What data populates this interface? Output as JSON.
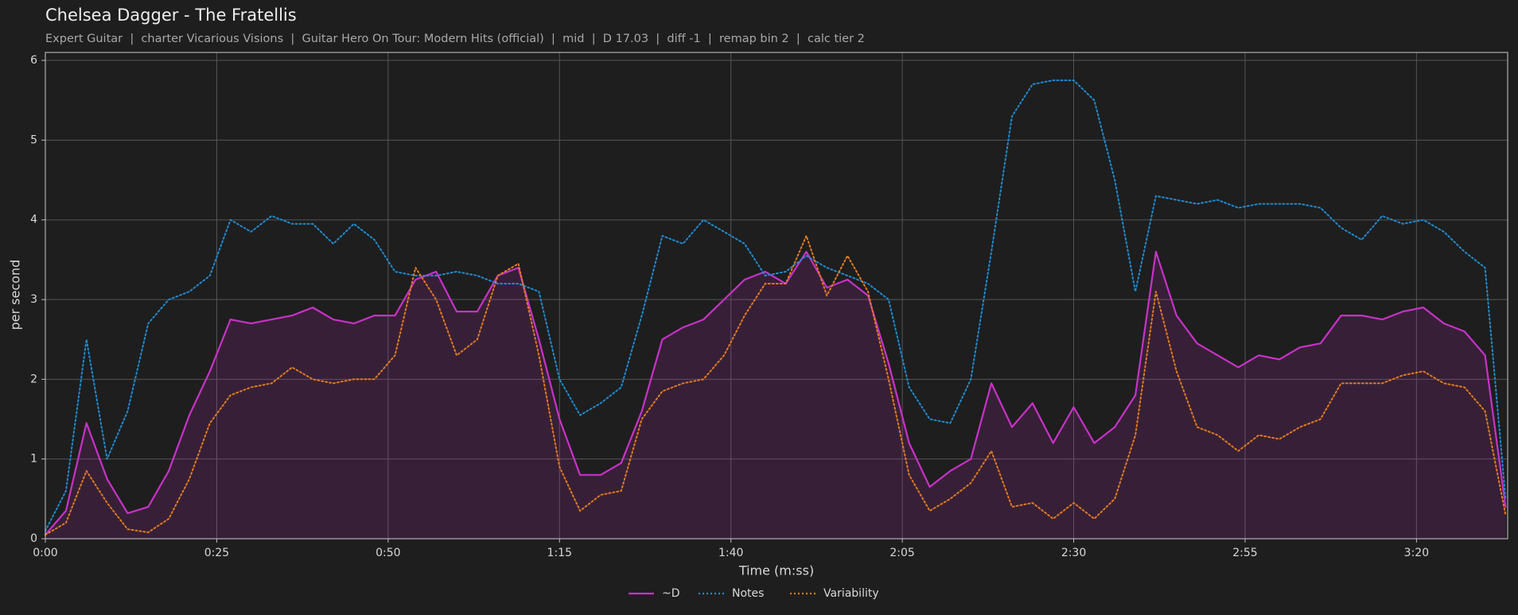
{
  "chart_data": {
    "type": "line",
    "title": "Chelsea Dagger - The Fratellis",
    "subtitle": "Expert Guitar  |  charter Vicarious Visions  |  Guitar Hero On Tour: Modern Hits (official)  |  mid  |  D 17.03  |  diff -1  |  remap bin 2  |  calc tier 2",
    "x_label": "Time (m:ss)",
    "y_label": "per second",
    "xlim": [
      0,
      213.3
    ],
    "ylim": [
      0,
      6.1
    ],
    "xticks": [
      {
        "value": 0,
        "label": "0:00"
      },
      {
        "value": 25,
        "label": "0:25"
      },
      {
        "value": 50,
        "label": "0:50"
      },
      {
        "value": 75,
        "label": "1:15"
      },
      {
        "value": 100,
        "label": "1:40"
      },
      {
        "value": 125,
        "label": "2:05"
      },
      {
        "value": 150,
        "label": "2:30"
      },
      {
        "value": 175,
        "label": "2:55"
      },
      {
        "value": 200,
        "label": "3:20"
      }
    ],
    "yticks": [
      0,
      1,
      2,
      3,
      4,
      5,
      6
    ],
    "grid": true,
    "legend": "bottom",
    "x": [
      0,
      3,
      6,
      9,
      12,
      15,
      18,
      21,
      24,
      27,
      30,
      33,
      36,
      39,
      42,
      45,
      48,
      51,
      54,
      57,
      60,
      63,
      66,
      69,
      72,
      75,
      78,
      81,
      84,
      87,
      90,
      93,
      96,
      99,
      102,
      105,
      108,
      111,
      114,
      117,
      120,
      123,
      126,
      129,
      132,
      135,
      138,
      141,
      144,
      147,
      150,
      153,
      156,
      159,
      162,
      165,
      168,
      171,
      174,
      177,
      180,
      183,
      186,
      189,
      192,
      195,
      198,
      201,
      204,
      207,
      210,
      213
    ],
    "series": [
      {
        "name": "~D",
        "color": "#c832c8",
        "style": "solid",
        "fill": true,
        "values": [
          0.05,
          0.35,
          1.45,
          0.75,
          0.32,
          0.4,
          0.85,
          1.55,
          2.1,
          2.75,
          2.7,
          2.75,
          2.8,
          2.9,
          2.75,
          2.7,
          2.8,
          2.8,
          3.25,
          3.35,
          2.85,
          2.85,
          3.3,
          3.4,
          2.5,
          1.5,
          0.8,
          0.8,
          0.95,
          1.6,
          2.5,
          2.65,
          2.75,
          3.0,
          3.25,
          3.35,
          3.2,
          3.6,
          3.15,
          3.25,
          3.05,
          2.2,
          1.2,
          0.65,
          0.85,
          1.0,
          1.95,
          1.4,
          1.7,
          1.2,
          1.65,
          1.2,
          1.4,
          1.8,
          3.6,
          2.8,
          2.45,
          2.3,
          2.15,
          2.3,
          2.25,
          2.4,
          2.45,
          2.8,
          2.8,
          2.75,
          2.85,
          2.9,
          2.7,
          2.6,
          2.3,
          0.4
        ]
      },
      {
        "name": "Notes",
        "color": "#1f8bd0",
        "style": "dotted",
        "values": [
          0.1,
          0.6,
          2.5,
          1.0,
          1.6,
          2.7,
          3.0,
          3.1,
          3.3,
          4.0,
          3.85,
          4.05,
          3.95,
          3.95,
          3.7,
          3.95,
          3.75,
          3.35,
          3.3,
          3.3,
          3.35,
          3.3,
          3.2,
          3.2,
          3.1,
          2.0,
          1.55,
          1.7,
          1.9,
          2.8,
          3.8,
          3.7,
          4.0,
          3.85,
          3.7,
          3.3,
          3.35,
          3.55,
          3.4,
          3.3,
          3.2,
          3.0,
          1.9,
          1.5,
          1.45,
          2.0,
          3.6,
          5.3,
          5.7,
          5.75,
          5.75,
          5.5,
          4.5,
          3.1,
          4.3,
          4.25,
          4.2,
          4.25,
          4.15,
          4.2,
          4.2,
          4.2,
          4.15,
          3.9,
          3.75,
          4.05,
          3.95,
          4.0,
          3.85,
          3.6,
          3.4,
          0.5
        ]
      },
      {
        "name": "Variability",
        "color": "#e07b20",
        "style": "dotted",
        "values": [
          0.05,
          0.2,
          0.85,
          0.45,
          0.12,
          0.08,
          0.25,
          0.75,
          1.45,
          1.8,
          1.9,
          1.95,
          2.15,
          2.0,
          1.95,
          2.0,
          2.0,
          2.3,
          3.4,
          3.0,
          2.3,
          2.5,
          3.3,
          3.45,
          2.3,
          0.9,
          0.35,
          0.55,
          0.6,
          1.5,
          1.85,
          1.95,
          2.0,
          2.3,
          2.8,
          3.2,
          3.2,
          3.8,
          3.05,
          3.55,
          3.1,
          2.0,
          0.8,
          0.35,
          0.5,
          0.7,
          1.1,
          0.4,
          0.45,
          0.25,
          0.45,
          0.25,
          0.5,
          1.3,
          3.1,
          2.1,
          1.4,
          1.3,
          1.1,
          1.3,
          1.25,
          1.4,
          1.5,
          1.95,
          1.95,
          1.95,
          2.05,
          2.1,
          1.95,
          1.9,
          1.6,
          0.3
        ]
      }
    ]
  }
}
